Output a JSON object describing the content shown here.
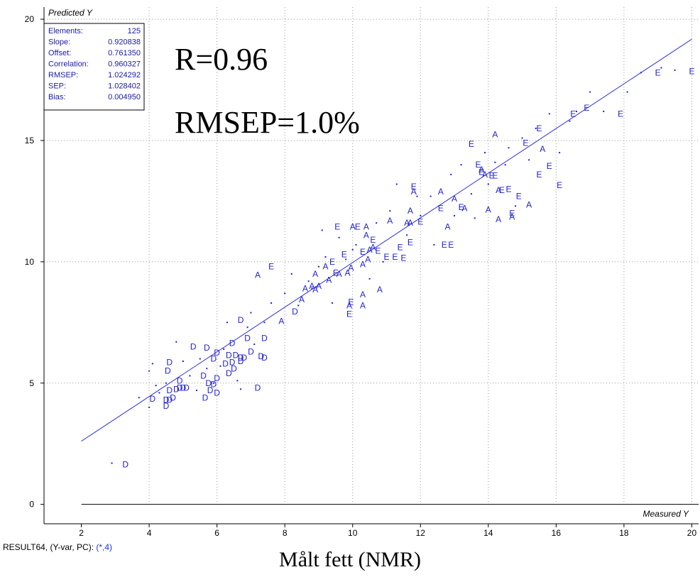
{
  "chart_data": {
    "type": "scatter",
    "xlabel": "Measured Y",
    "ylabel": "Predicted Y",
    "xlim": [
      0.9,
      20.2
    ],
    "ylim": [
      -0.8,
      20.5
    ],
    "x_ticks": [
      "2",
      "4",
      "6",
      "8",
      "10",
      "12",
      "14",
      "16",
      "18",
      "20"
    ],
    "y_ticks": [
      "0",
      "5",
      "10",
      "15",
      "20"
    ],
    "grid": true,
    "regression_line": {
      "slope": 0.920838,
      "offset": 0.76135
    },
    "stats": [
      {
        "label": "Elements:",
        "value": "125"
      },
      {
        "label": "Slope:",
        "value": "0.920838"
      },
      {
        "label": "Offset:",
        "value": "0.761350"
      },
      {
        "label": "Correlation:",
        "value": "0.960327"
      },
      {
        "label": "RMSEP:",
        "value": "1.024292"
      },
      {
        "label": "SEP:",
        "value": "1.028402"
      },
      {
        "label": "Bias:",
        "value": "0.004950"
      }
    ],
    "annotations": [
      "R=0.96",
      "RMSEP=1.0%"
    ],
    "points": [
      {
        "x": 3.3,
        "y": 1.65,
        "label": "D"
      },
      {
        "x": 4.1,
        "y": 4.35,
        "label": "D"
      },
      {
        "x": 4.5,
        "y": 4.3,
        "label": "D"
      },
      {
        "x": 4.6,
        "y": 4.3,
        "label": "D"
      },
      {
        "x": 4.7,
        "y": 4.4,
        "label": "D"
      },
      {
        "x": 4.5,
        "y": 4.05,
        "label": "D"
      },
      {
        "x": 4.6,
        "y": 4.7,
        "label": "D"
      },
      {
        "x": 4.8,
        "y": 4.75,
        "label": "D"
      },
      {
        "x": 4.9,
        "y": 4.8,
        "label": "D"
      },
      {
        "x": 5.0,
        "y": 4.8,
        "label": "D"
      },
      {
        "x": 5.1,
        "y": 4.8,
        "label": "D"
      },
      {
        "x": 4.9,
        "y": 5.1,
        "label": "D"
      },
      {
        "x": 4.55,
        "y": 5.5,
        "label": "D"
      },
      {
        "x": 4.6,
        "y": 5.85,
        "label": "D"
      },
      {
        "x": 5.3,
        "y": 6.5,
        "label": "D"
      },
      {
        "x": 5.7,
        "y": 6.45,
        "label": "D"
      },
      {
        "x": 5.65,
        "y": 4.4,
        "label": "D"
      },
      {
        "x": 5.8,
        "y": 4.7,
        "label": "D"
      },
      {
        "x": 6.0,
        "y": 4.6,
        "label": "D"
      },
      {
        "x": 5.9,
        "y": 4.95,
        "label": "D"
      },
      {
        "x": 5.75,
        "y": 5.0,
        "label": "D"
      },
      {
        "x": 5.6,
        "y": 5.3,
        "label": "D"
      },
      {
        "x": 6.0,
        "y": 5.2,
        "label": "D"
      },
      {
        "x": 6.35,
        "y": 5.4,
        "label": "D"
      },
      {
        "x": 6.5,
        "y": 5.6,
        "label": "D"
      },
      {
        "x": 6.25,
        "y": 5.8,
        "label": "D"
      },
      {
        "x": 6.45,
        "y": 5.85,
        "label": "D"
      },
      {
        "x": 6.7,
        "y": 5.9,
        "label": "D"
      },
      {
        "x": 6.8,
        "y": 6.05,
        "label": "D"
      },
      {
        "x": 6.35,
        "y": 6.15,
        "label": "D"
      },
      {
        "x": 6.55,
        "y": 6.15,
        "label": "D"
      },
      {
        "x": 7.0,
        "y": 6.3,
        "label": "D"
      },
      {
        "x": 5.9,
        "y": 6.0,
        "label": "D"
      },
      {
        "x": 6.0,
        "y": 6.25,
        "label": "D"
      },
      {
        "x": 6.45,
        "y": 6.65,
        "label": "D"
      },
      {
        "x": 6.7,
        "y": 6.05,
        "label": "D"
      },
      {
        "x": 7.3,
        "y": 6.1,
        "label": "D"
      },
      {
        "x": 7.4,
        "y": 6.05,
        "label": "D"
      },
      {
        "x": 6.9,
        "y": 6.85,
        "label": "D"
      },
      {
        "x": 7.4,
        "y": 6.85,
        "label": "D"
      },
      {
        "x": 6.7,
        "y": 7.6,
        "label": "D"
      },
      {
        "x": 7.2,
        "y": 4.8,
        "label": "D"
      },
      {
        "x": 8.3,
        "y": 7.95,
        "label": "D"
      },
      {
        "x": 7.9,
        "y": 7.55,
        "label": "A"
      },
      {
        "x": 8.5,
        "y": 8.45,
        "label": "A"
      },
      {
        "x": 8.6,
        "y": 8.9,
        "label": "A"
      },
      {
        "x": 8.8,
        "y": 9.0,
        "label": "A"
      },
      {
        "x": 9.0,
        "y": 9.0,
        "label": "A"
      },
      {
        "x": 8.9,
        "y": 9.5,
        "label": "A"
      },
      {
        "x": 9.3,
        "y": 9.25,
        "label": "A"
      },
      {
        "x": 9.2,
        "y": 9.8,
        "label": "A"
      },
      {
        "x": 9.6,
        "y": 9.5,
        "label": "A"
      },
      {
        "x": 9.85,
        "y": 9.55,
        "label": "A"
      },
      {
        "x": 9.95,
        "y": 9.75,
        "label": "A"
      },
      {
        "x": 10.3,
        "y": 9.9,
        "label": "A"
      },
      {
        "x": 10.45,
        "y": 10.1,
        "label": "A"
      },
      {
        "x": 10.5,
        "y": 10.5,
        "label": "A"
      },
      {
        "x": 10.6,
        "y": 10.6,
        "label": "A"
      },
      {
        "x": 10.4,
        "y": 11.1,
        "label": "A"
      },
      {
        "x": 10.0,
        "y": 11.45,
        "label": "A"
      },
      {
        "x": 10.4,
        "y": 11.45,
        "label": "A"
      },
      {
        "x": 11.1,
        "y": 11.7,
        "label": "A"
      },
      {
        "x": 11.7,
        "y": 12.1,
        "label": "A"
      },
      {
        "x": 11.6,
        "y": 11.6,
        "label": "A"
      },
      {
        "x": 11.7,
        "y": 11.6,
        "label": "A"
      },
      {
        "x": 11.8,
        "y": 12.9,
        "label": "A"
      },
      {
        "x": 12.6,
        "y": 12.9,
        "label": "A"
      },
      {
        "x": 12.8,
        "y": 11.45,
        "label": "A"
      },
      {
        "x": 13.0,
        "y": 12.6,
        "label": "A"
      },
      {
        "x": 13.3,
        "y": 12.2,
        "label": "A"
      },
      {
        "x": 13.9,
        "y": 13.6,
        "label": "A"
      },
      {
        "x": 13.8,
        "y": 13.8,
        "label": "A"
      },
      {
        "x": 14.2,
        "y": 15.25,
        "label": "A"
      },
      {
        "x": 14.3,
        "y": 12.95,
        "label": "A"
      },
      {
        "x": 14.3,
        "y": 11.75,
        "label": "A"
      },
      {
        "x": 15.6,
        "y": 14.65,
        "label": "A"
      },
      {
        "x": 15.2,
        "y": 12.35,
        "label": "A"
      },
      {
        "x": 14.0,
        "y": 12.15,
        "label": "A"
      },
      {
        "x": 14.7,
        "y": 11.85,
        "label": "A"
      },
      {
        "x": 7.2,
        "y": 9.45,
        "label": "A"
      },
      {
        "x": 8.9,
        "y": 8.85,
        "label": "A"
      },
      {
        "x": 9.9,
        "y": 8.2,
        "label": "A"
      },
      {
        "x": 10.3,
        "y": 8.65,
        "label": "A"
      },
      {
        "x": 10.3,
        "y": 8.2,
        "label": "A"
      },
      {
        "x": 10.8,
        "y": 8.85,
        "label": "A"
      },
      {
        "x": 7.6,
        "y": 9.8,
        "label": "E"
      },
      {
        "x": 9.9,
        "y": 7.85,
        "label": "E"
      },
      {
        "x": 9.95,
        "y": 8.35,
        "label": "E"
      },
      {
        "x": 9.5,
        "y": 9.55,
        "label": "E"
      },
      {
        "x": 9.4,
        "y": 10.0,
        "label": "E"
      },
      {
        "x": 9.75,
        "y": 10.3,
        "label": "E"
      },
      {
        "x": 9.55,
        "y": 11.45,
        "label": "E"
      },
      {
        "x": 10.15,
        "y": 11.45,
        "label": "E"
      },
      {
        "x": 10.3,
        "y": 10.4,
        "label": "E"
      },
      {
        "x": 10.6,
        "y": 10.9,
        "label": "E"
      },
      {
        "x": 10.75,
        "y": 10.45,
        "label": "E"
      },
      {
        "x": 11.0,
        "y": 10.2,
        "label": "E"
      },
      {
        "x": 11.25,
        "y": 10.2,
        "label": "E"
      },
      {
        "x": 11.5,
        "y": 10.15,
        "label": "E"
      },
      {
        "x": 11.4,
        "y": 10.6,
        "label": "E"
      },
      {
        "x": 11.7,
        "y": 10.8,
        "label": "E"
      },
      {
        "x": 11.8,
        "y": 13.1,
        "label": "E"
      },
      {
        "x": 12.0,
        "y": 11.65,
        "label": "E"
      },
      {
        "x": 12.6,
        "y": 12.2,
        "label": "E"
      },
      {
        "x": 12.9,
        "y": 10.7,
        "label": "E"
      },
      {
        "x": 12.7,
        "y": 10.7,
        "label": "E"
      },
      {
        "x": 13.2,
        "y": 12.25,
        "label": "E"
      },
      {
        "x": 13.5,
        "y": 14.85,
        "label": "E"
      },
      {
        "x": 13.7,
        "y": 14.0,
        "label": "E"
      },
      {
        "x": 13.8,
        "y": 13.7,
        "label": "E"
      },
      {
        "x": 14.1,
        "y": 13.55,
        "label": "E"
      },
      {
        "x": 14.2,
        "y": 13.55,
        "label": "E"
      },
      {
        "x": 14.4,
        "y": 12.95,
        "label": "E"
      },
      {
        "x": 14.6,
        "y": 13.0,
        "label": "E"
      },
      {
        "x": 14.9,
        "y": 12.7,
        "label": "E"
      },
      {
        "x": 14.7,
        "y": 12.0,
        "label": "E"
      },
      {
        "x": 15.1,
        "y": 14.9,
        "label": "E"
      },
      {
        "x": 15.5,
        "y": 15.5,
        "label": "E"
      },
      {
        "x": 15.8,
        "y": 13.95,
        "label": "E"
      },
      {
        "x": 15.5,
        "y": 13.6,
        "label": "E"
      },
      {
        "x": 16.1,
        "y": 13.15,
        "label": "E"
      },
      {
        "x": 16.5,
        "y": 16.1,
        "label": "E"
      },
      {
        "x": 16.9,
        "y": 16.35,
        "label": "E"
      },
      {
        "x": 17.9,
        "y": 16.1,
        "label": "E"
      },
      {
        "x": 19.0,
        "y": 17.8,
        "label": "E"
      },
      {
        "x": 20.0,
        "y": 17.85,
        "label": "E"
      }
    ],
    "dots": [
      [
        2.9,
        1.7
      ],
      [
        3.7,
        4.4
      ],
      [
        4.0,
        4.0
      ],
      [
        4.0,
        5.5
      ],
      [
        4.1,
        5.8
      ],
      [
        4.3,
        4.6
      ],
      [
        4.5,
        5.0
      ],
      [
        4.8,
        6.7
      ],
      [
        5.2,
        5.3
      ],
      [
        5.4,
        4.7
      ],
      [
        5.5,
        6.0
      ],
      [
        5.7,
        5.6
      ],
      [
        5.9,
        5.0
      ],
      [
        6.1,
        5.7
      ],
      [
        6.2,
        6.4
      ],
      [
        6.3,
        7.5
      ],
      [
        6.6,
        5.1
      ],
      [
        6.7,
        4.75
      ],
      [
        7.1,
        6.6
      ],
      [
        7.0,
        7.9
      ],
      [
        7.4,
        7.5
      ],
      [
        7.6,
        8.3
      ],
      [
        8.0,
        8.7
      ],
      [
        8.2,
        9.5
      ],
      [
        8.4,
        8.2
      ],
      [
        8.7,
        9.2
      ],
      [
        9.0,
        9.8
      ],
      [
        9.2,
        10.2
      ],
      [
        9.1,
        11.3
      ],
      [
        9.6,
        11.0
      ],
      [
        9.4,
        8.3
      ],
      [
        9.8,
        10.1
      ],
      [
        10.1,
        10.7
      ],
      [
        10.0,
        10.5
      ],
      [
        10.7,
        11.6
      ],
      [
        10.9,
        10.0
      ],
      [
        11.1,
        12.1
      ],
      [
        11.3,
        13.2
      ],
      [
        11.6,
        11.1
      ],
      [
        12.0,
        11.9
      ],
      [
        12.3,
        12.7
      ],
      [
        12.4,
        10.7
      ],
      [
        12.9,
        13.6
      ],
      [
        13.2,
        14.0
      ],
      [
        13.5,
        12.8
      ],
      [
        13.6,
        11.8
      ],
      [
        13.9,
        14.5
      ],
      [
        14.0,
        13.2
      ],
      [
        14.2,
        14.1
      ],
      [
        14.5,
        14.0
      ],
      [
        14.8,
        12.3
      ],
      [
        15.0,
        15.1
      ],
      [
        15.2,
        14.2
      ],
      [
        15.4,
        15.5
      ],
      [
        15.8,
        16.1
      ],
      [
        16.1,
        14.5
      ],
      [
        16.4,
        15.8
      ],
      [
        16.6,
        16.2
      ],
      [
        17.0,
        17.0
      ],
      [
        17.4,
        16.2
      ],
      [
        18.1,
        17.0
      ],
      [
        18.5,
        17.8
      ],
      [
        19.1,
        18.0
      ],
      [
        19.5,
        17.9
      ],
      [
        4.2,
        4.9
      ],
      [
        5.0,
        5.9
      ],
      [
        6.9,
        7.3
      ],
      [
        8.8,
        8.9
      ],
      [
        10.5,
        9.3
      ],
      [
        11.9,
        12.7
      ],
      [
        13.0,
        11.9
      ],
      [
        14.6,
        14.7
      ]
    ]
  },
  "footer": {
    "prefix": "RESULT64, (Y-var, PC): ",
    "pc": "(*,4)"
  },
  "caption": "Målt fett (NMR)",
  "colors": {
    "points": "#1f1fd0",
    "line": "#3333dd",
    "grid": "#9a9a9a"
  }
}
